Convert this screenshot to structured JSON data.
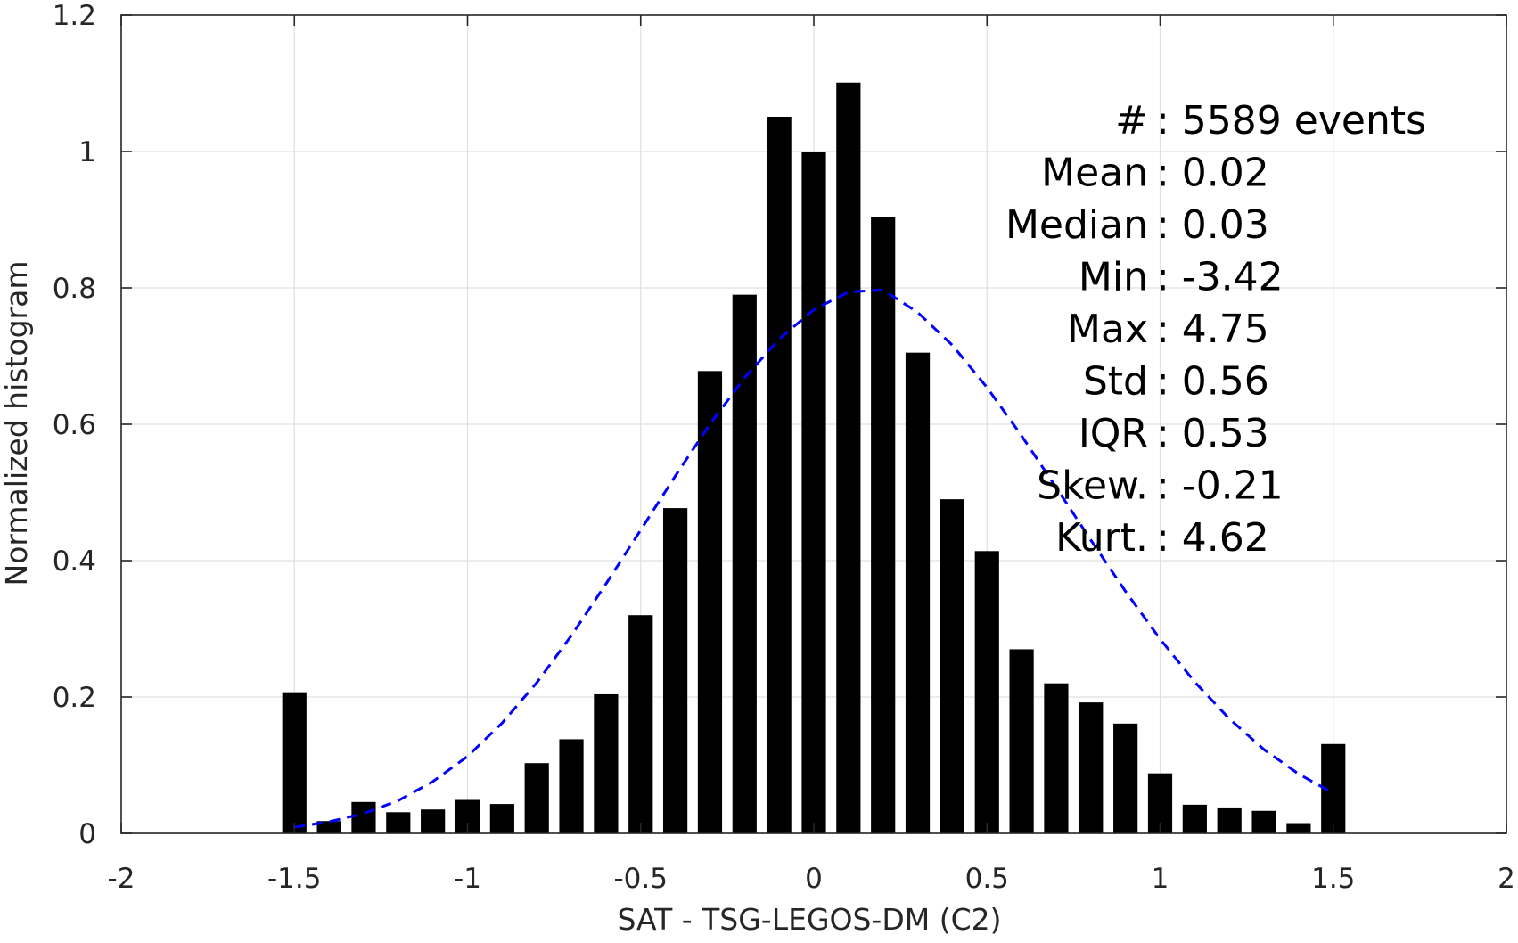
{
  "chart_data": {
    "type": "bar",
    "title": "",
    "xlabel": "SAT - TSG-LEGOS-DM (C2)",
    "ylabel": "Normalized histogram",
    "xlim": [
      -2,
      2
    ],
    "ylim": [
      0,
      1.2
    ],
    "xticks": [
      -2,
      -1.5,
      -1,
      -0.5,
      0,
      0.5,
      1,
      1.5,
      2
    ],
    "xtick_labels": [
      "-2",
      "-1.5",
      "-1",
      "-0.5",
      "0",
      "0.5",
      "1",
      "1.5",
      "2"
    ],
    "yticks": [
      0,
      0.2,
      0.4,
      0.6,
      0.8,
      1,
      1.2
    ],
    "ytick_labels": [
      "0",
      "0.2",
      "0.4",
      "0.6",
      "0.8",
      "1",
      "1.2"
    ],
    "grid": true,
    "series": [
      {
        "type": "bar",
        "color": "#000000",
        "bin_width": 0.1,
        "x": [
          -1.5,
          -1.4,
          -1.3,
          -1.2,
          -1.1,
          -1.0,
          -0.9,
          -0.8,
          -0.7,
          -0.6,
          -0.5,
          -0.4,
          -0.3,
          -0.2,
          -0.1,
          0.0,
          0.1,
          0.2,
          0.3,
          0.4,
          0.5,
          0.6,
          0.7,
          0.8,
          0.9,
          1.0,
          1.1,
          1.2,
          1.3,
          1.4,
          1.5
        ],
        "values": [
          0.207,
          0.018,
          0.046,
          0.031,
          0.035,
          0.049,
          0.043,
          0.103,
          0.138,
          0.204,
          0.32,
          0.477,
          0.678,
          0.79,
          1.051,
          1.0,
          1.101,
          0.904,
          0.705,
          0.49,
          0.414,
          0.27,
          0.22,
          0.192,
          0.161,
          0.088,
          0.042,
          0.038,
          0.033,
          0.015,
          0.131
        ]
      },
      {
        "type": "line",
        "style": "dashed",
        "color": "#0000ff",
        "x": [
          -1.5,
          -1.4,
          -1.3,
          -1.2,
          -1.1,
          -1.0,
          -0.9,
          -0.8,
          -0.7,
          -0.6,
          -0.5,
          -0.4,
          -0.3,
          -0.2,
          -0.1,
          0.0,
          0.1,
          0.2,
          0.3,
          0.4,
          0.5,
          0.6,
          0.7,
          0.8,
          0.9,
          1.0,
          1.1,
          1.2,
          1.3,
          1.4,
          1.5
        ],
        "values": [
          0.009,
          0.017,
          0.029,
          0.048,
          0.076,
          0.113,
          0.162,
          0.221,
          0.29,
          0.366,
          0.445,
          0.524,
          0.6,
          0.668,
          0.725,
          0.768,
          0.794,
          0.797,
          0.764,
          0.716,
          0.654,
          0.583,
          0.507,
          0.43,
          0.355,
          0.285,
          0.222,
          0.168,
          0.123,
          0.087,
          0.059
        ]
      }
    ],
    "annotations": [
      {
        "label": "#",
        "value": ": 5589 events"
      },
      {
        "label": "Mean",
        "value": ": 0.02"
      },
      {
        "label": "Median",
        "value": ": 0.03"
      },
      {
        "label": "Min",
        "value": ": -3.42"
      },
      {
        "label": "Max",
        "value": ": 4.75"
      },
      {
        "label": "Std",
        "value": ": 0.56"
      },
      {
        "label": "IQR",
        "value": ": 0.53"
      },
      {
        "label": "Skew.",
        "value": ": -0.21"
      },
      {
        "label": "Kurt.",
        "value": ": 4.62"
      }
    ]
  }
}
